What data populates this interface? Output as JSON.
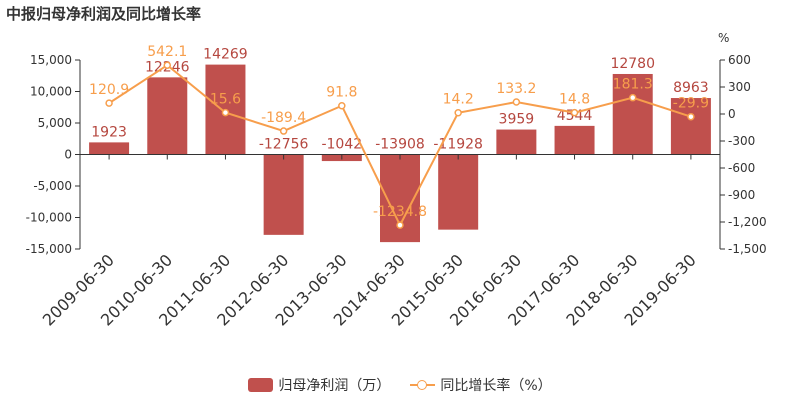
{
  "title": "中报归母净利润及同比增长率",
  "chart_data": {
    "type": "bar",
    "categories": [
      "2009-06-30",
      "2010-06-30",
      "2011-06-30",
      "2012-06-30",
      "2013-06-30",
      "2014-06-30",
      "2015-06-30",
      "2016-06-30",
      "2017-06-30",
      "2018-06-30",
      "2019-06-30"
    ],
    "series": [
      {
        "name": "归母净利润（万）",
        "type": "bar",
        "axis": "left",
        "values": [
          1923,
          12246,
          14269,
          -12756,
          -1042,
          -13908,
          -11928,
          3959,
          4544,
          12780,
          8963
        ],
        "labels": [
          "1923",
          "12246",
          "14269",
          "-12756",
          "-1042",
          "-13908",
          "-11928",
          "3959",
          "4544",
          "12780",
          "8963"
        ],
        "color": "#c0504d"
      },
      {
        "name": "同比增长率（%）",
        "type": "line",
        "axis": "right",
        "values": [
          120.9,
          542.1,
          15.6,
          -189.4,
          91.8,
          -1234.8,
          14.2,
          133.2,
          14.8,
          181.3,
          -29.9
        ],
        "labels": [
          "120.9",
          "542.1",
          "15.6",
          "-189.4",
          "91.8",
          "-1234.8",
          "14.2",
          "133.2",
          "14.8",
          "181.3",
          "-29.9"
        ],
        "color": "#f79e4c"
      }
    ],
    "left_axis": {
      "ylim": [
        -15000,
        15000
      ],
      "ticks": [
        "15,000",
        "10,000",
        "5,000",
        "0",
        "-5,000",
        "-10,000",
        "-15,000"
      ],
      "tick_values": [
        15000,
        10000,
        5000,
        0,
        -5000,
        -10000,
        -15000
      ]
    },
    "right_axis": {
      "unit": "%",
      "ylim": [
        -1500,
        600
      ],
      "ticks": [
        "600",
        "300",
        "0",
        "-300",
        "-600",
        "-900",
        "-1,200",
        "-1,500"
      ],
      "tick_values": [
        600,
        300,
        0,
        -300,
        -600,
        -900,
        -1200,
        -1500
      ]
    },
    "grid": false,
    "legend_position": "bottom"
  },
  "legend": {
    "bar_label": "归母净利润（万）",
    "line_label": "同比增长率（%）"
  }
}
